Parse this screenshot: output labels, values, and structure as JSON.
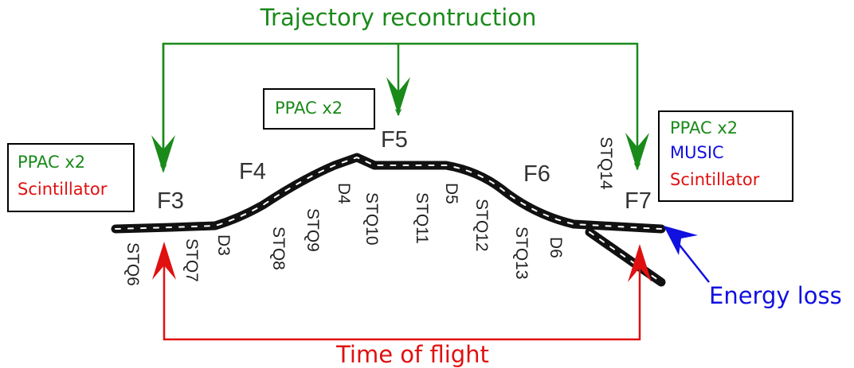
{
  "title": "Trajectory recontruction",
  "bottom_label": "Time of flight",
  "side_label": "Energy loss",
  "boxes": [
    {
      "lines": [
        "PPAC x2",
        "Scintillator"
      ]
    },
    {
      "lines": [
        "PPAC x2"
      ]
    },
    {
      "lines": [
        "PPAC x2",
        "MUSIC",
        "Scintillator"
      ]
    }
  ],
  "focal_planes": [
    "F3",
    "F4",
    "F5",
    "F6",
    "F7"
  ],
  "elements": [
    "STQ6",
    "STQ7",
    "D3",
    "STQ8",
    "STQ9",
    "D4",
    "STQ10",
    "STQ11",
    "D5",
    "STQ12",
    "STQ13",
    "D6",
    "STQ14"
  ]
}
